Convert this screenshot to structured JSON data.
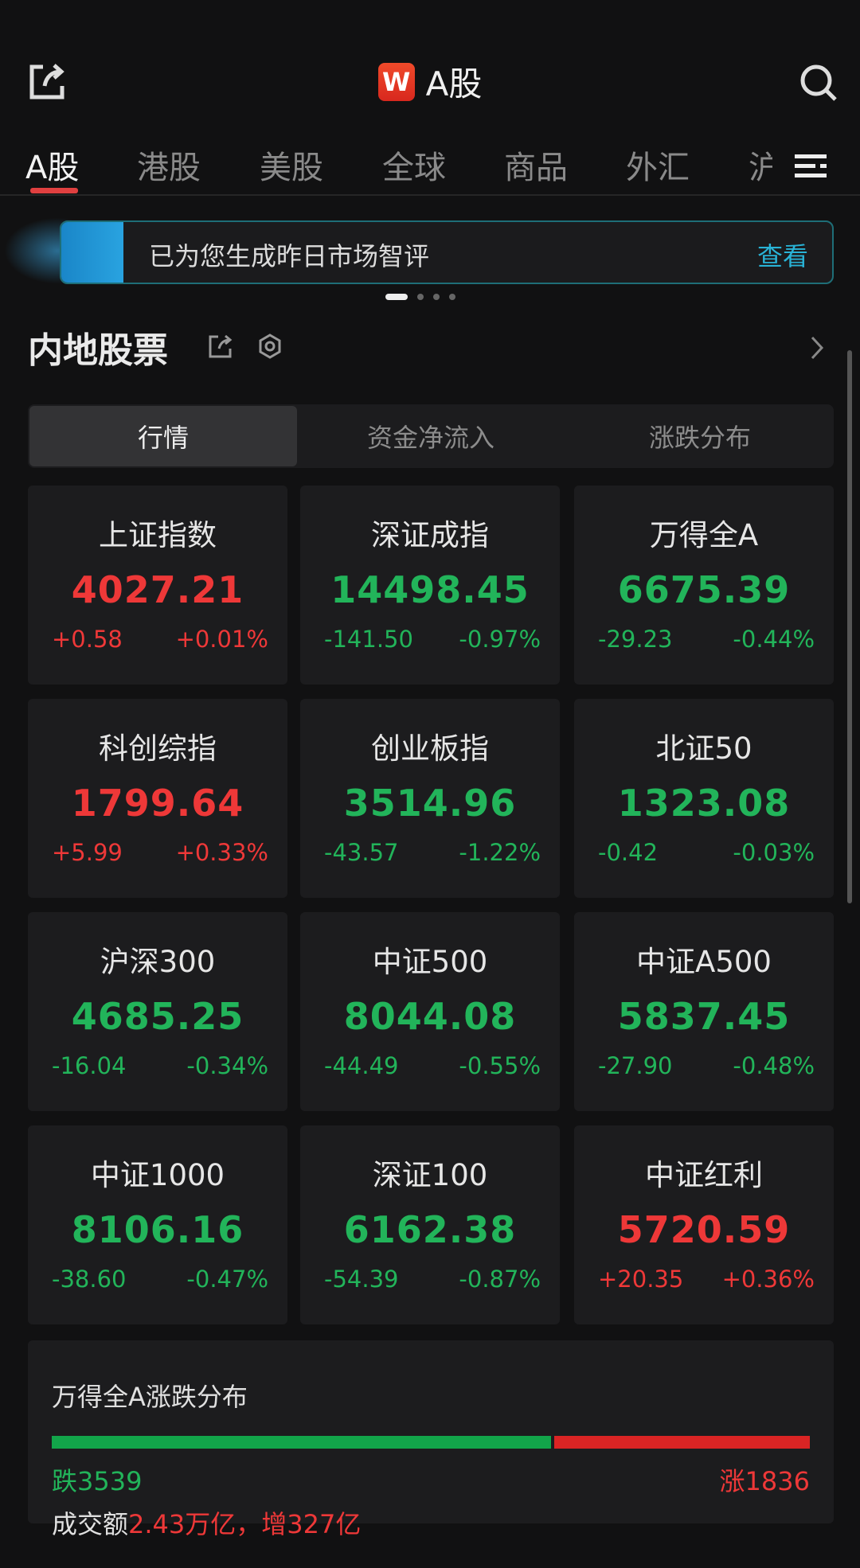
{
  "header": {
    "title": "A股",
    "logo": "W"
  },
  "tabs": [
    "A股",
    "港股",
    "美股",
    "全球",
    "商品",
    "外汇",
    "沪"
  ],
  "banner": {
    "text": "已为您生成昨日市场智评",
    "button": "查看"
  },
  "section": {
    "title": "内地股票"
  },
  "segments": [
    "行情",
    "资金净流入",
    "涨跌分布"
  ],
  "colors": {
    "up": "#ee3838",
    "down": "#22b45a",
    "accent": "#29b3d6"
  },
  "indices": [
    {
      "name": "上证指数",
      "value": "4027.21",
      "change": "+0.58",
      "pct": "+0.01%",
      "dir": "up"
    },
    {
      "name": "深证成指",
      "value": "14498.45",
      "change": "-141.50",
      "pct": "-0.97%",
      "dir": "down"
    },
    {
      "name": "万得全A",
      "value": "6675.39",
      "change": "-29.23",
      "pct": "-0.44%",
      "dir": "down"
    },
    {
      "name": "科创综指",
      "value": "1799.64",
      "change": "+5.99",
      "pct": "+0.33%",
      "dir": "up"
    },
    {
      "name": "创业板指",
      "value": "3514.96",
      "change": "-43.57",
      "pct": "-1.22%",
      "dir": "down"
    },
    {
      "name": "北证50",
      "value": "1323.08",
      "change": "-0.42",
      "pct": "-0.03%",
      "dir": "down"
    },
    {
      "name": "沪深300",
      "value": "4685.25",
      "change": "-16.04",
      "pct": "-0.34%",
      "dir": "down"
    },
    {
      "name": "中证500",
      "value": "8044.08",
      "change": "-44.49",
      "pct": "-0.55%",
      "dir": "down"
    },
    {
      "name": "中证A500",
      "value": "5837.45",
      "change": "-27.90",
      "pct": "-0.48%",
      "dir": "down"
    },
    {
      "name": "中证1000",
      "value": "8106.16",
      "change": "-38.60",
      "pct": "-0.47%",
      "dir": "down"
    },
    {
      "name": "深证100",
      "value": "6162.38",
      "change": "-54.39",
      "pct": "-0.87%",
      "dir": "down"
    },
    {
      "name": "中证红利",
      "value": "5720.59",
      "change": "+20.35",
      "pct": "+0.36%",
      "dir": "up"
    }
  ],
  "distribution": {
    "title": "万得全A涨跌分布",
    "fall_label": "跌3539",
    "rise_label": "涨1836",
    "fall": 3539,
    "rise": 1836,
    "turnover_label": "成交额",
    "turnover_value": "2.43万亿，增327亿"
  }
}
